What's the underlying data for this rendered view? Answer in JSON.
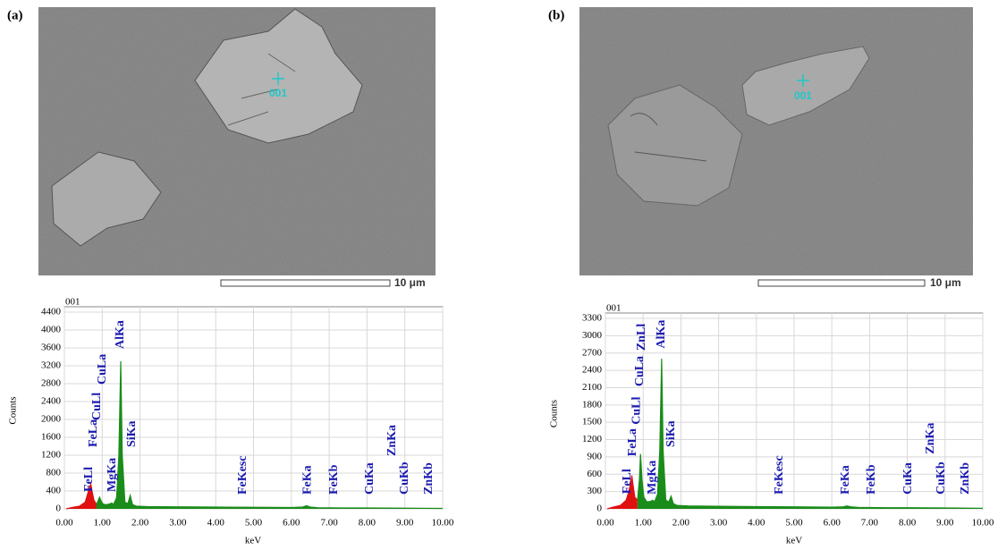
{
  "panels": [
    {
      "label": "(a)",
      "marker": "001",
      "scale_bar": "10 μm"
    },
    {
      "label": "(b)",
      "marker": "001",
      "scale_bar": "10 μm"
    }
  ],
  "chart_data": [
    {
      "type": "area",
      "title": "001",
      "x_label": "keV",
      "y_label": "Counts",
      "grid": true,
      "xlim": [
        0,
        10
      ],
      "ylim": [
        0,
        4400
      ],
      "xticks": [
        {
          "value": 0,
          "label": "0.00"
        },
        {
          "value": 1,
          "label": "1.00"
        },
        {
          "value": 2,
          "label": "2.00"
        },
        {
          "value": 3,
          "label": "3.00"
        },
        {
          "value": 4,
          "label": "4.00"
        },
        {
          "value": 5,
          "label": "5.00"
        },
        {
          "value": 6,
          "label": "6.00"
        },
        {
          "value": 7,
          "label": "7.00"
        },
        {
          "value": 8,
          "label": "8.00"
        },
        {
          "value": 9,
          "label": "9.00"
        },
        {
          "value": 10,
          "label": "10.00"
        }
      ],
      "yticks": [
        0,
        400,
        800,
        1200,
        1600,
        2000,
        2400,
        2800,
        3200,
        3600,
        4000,
        4400
      ],
      "series": [
        {
          "color": "#e01010",
          "x": [
            0.05,
            0.2,
            0.4,
            0.55,
            0.62,
            0.67,
            0.7,
            0.73,
            0.78,
            0.85
          ],
          "values": [
            0,
            30,
            60,
            150,
            350,
            500,
            550,
            400,
            200,
            100
          ]
        },
        {
          "color": "#1a8c1a",
          "x": [
            0.85,
            0.9,
            0.93,
            0.97,
            1.02,
            1.1,
            1.2,
            1.25,
            1.3,
            1.38,
            1.44,
            1.49,
            1.53,
            1.6,
            1.68,
            1.74,
            1.8,
            1.9,
            2.2,
            3,
            4,
            5,
            6,
            6.3,
            6.4,
            6.5,
            6.7,
            7.5,
            8,
            9,
            10
          ],
          "values": [
            100,
            200,
            260,
            180,
            110,
            90,
            110,
            130,
            100,
            250,
            1200,
            3300,
            1200,
            150,
            120,
            300,
            100,
            60,
            50,
            45,
            40,
            35,
            30,
            40,
            70,
            40,
            25,
            20,
            20,
            15,
            10
          ]
        }
      ],
      "annotations": [
        {
          "text": "FeLl",
          "x": 0.61,
          "y": 380
        },
        {
          "text": "FeLa",
          "x": 0.73,
          "y": 1380
        },
        {
          "text": "CuLl",
          "x": 0.83,
          "y": 1980
        },
        {
          "text": "CuLa",
          "x": 0.97,
          "y": 2780
        },
        {
          "text": "MgKa",
          "x": 1.23,
          "y": 380
        },
        {
          "text": "AlKa",
          "x": 1.44,
          "y": 3580
        },
        {
          "text": "SiKa",
          "x": 1.75,
          "y": 1380
        },
        {
          "text": "FeKesc",
          "x": 4.68,
          "y": 320
        },
        {
          "text": "FeKa",
          "x": 6.4,
          "y": 320
        },
        {
          "text": "FeKb",
          "x": 7.09,
          "y": 320
        },
        {
          "text": "CuKa",
          "x": 8.04,
          "y": 320
        },
        {
          "text": "ZnKa",
          "x": 8.63,
          "y": 1180
        },
        {
          "text": "CuKb",
          "x": 8.96,
          "y": 320
        },
        {
          "text": "ZnKb",
          "x": 9.6,
          "y": 320
        }
      ]
    },
    {
      "type": "area",
      "title": "001",
      "x_label": "keV",
      "y_label": "Counts",
      "grid": true,
      "xlim": [
        0,
        10
      ],
      "ylim": [
        0,
        3300
      ],
      "xticks": [
        {
          "value": 0,
          "label": "0.00"
        },
        {
          "value": 1,
          "label": "1.00"
        },
        {
          "value": 2,
          "label": "2.00"
        },
        {
          "value": 3,
          "label": "3.00"
        },
        {
          "value": 4,
          "label": "4.00"
        },
        {
          "value": 5,
          "label": "5.00"
        },
        {
          "value": 6,
          "label": "6.00"
        },
        {
          "value": 7,
          "label": "7.00"
        },
        {
          "value": 8,
          "label": "8.00"
        },
        {
          "value": 9,
          "label": "9.00"
        },
        {
          "value": 10,
          "label": "10.00"
        }
      ],
      "yticks": [
        0,
        300,
        600,
        900,
        1200,
        1500,
        1800,
        2100,
        2400,
        2700,
        3000,
        3300
      ],
      "series": [
        {
          "color": "#e01010",
          "x": [
            0.05,
            0.2,
            0.4,
            0.55,
            0.62,
            0.67,
            0.7,
            0.73,
            0.78,
            0.85
          ],
          "values": [
            0,
            30,
            60,
            150,
            300,
            450,
            580,
            420,
            200,
            150
          ]
        },
        {
          "color": "#1a8c1a",
          "x": [
            0.85,
            0.9,
            0.93,
            0.97,
            1.02,
            1.1,
            1.2,
            1.25,
            1.3,
            1.38,
            1.44,
            1.49,
            1.53,
            1.6,
            1.68,
            1.74,
            1.8,
            1.9,
            2.2,
            3,
            4,
            5,
            6,
            6.3,
            6.4,
            6.5,
            6.7,
            7.5,
            8,
            9,
            10
          ],
          "values": [
            150,
            500,
            950,
            500,
            200,
            120,
            130,
            150,
            120,
            250,
            1000,
            2600,
            1000,
            150,
            120,
            220,
            90,
            60,
            50,
            45,
            40,
            35,
            30,
            35,
            50,
            35,
            25,
            20,
            20,
            15,
            10
          ]
        }
      ],
      "annotations": [
        {
          "text": "FeLl",
          "x": 0.55,
          "y": 260
        },
        {
          "text": "FeLa",
          "x": 0.69,
          "y": 910
        },
        {
          "text": "CuLl",
          "x": 0.8,
          "y": 1460
        },
        {
          "text": "CuLa",
          "x": 0.88,
          "y": 2120
        },
        {
          "text": "ZnLl",
          "x": 0.92,
          "y": 2740
        },
        {
          "text": "MgKa",
          "x": 1.21,
          "y": 250
        },
        {
          "text": "AlKa",
          "x": 1.45,
          "y": 2780
        },
        {
          "text": "SiKa",
          "x": 1.71,
          "y": 1070
        },
        {
          "text": "FeKesc",
          "x": 4.57,
          "y": 250
        },
        {
          "text": "FeKa",
          "x": 6.33,
          "y": 250
        },
        {
          "text": "FeKb",
          "x": 7.01,
          "y": 250
        },
        {
          "text": "CuKa",
          "x": 7.99,
          "y": 250
        },
        {
          "text": "ZnKa",
          "x": 8.58,
          "y": 950
        },
        {
          "text": "CuKb",
          "x": 8.86,
          "y": 250
        },
        {
          "text": "ZnKb",
          "x": 9.5,
          "y": 250
        }
      ]
    }
  ]
}
